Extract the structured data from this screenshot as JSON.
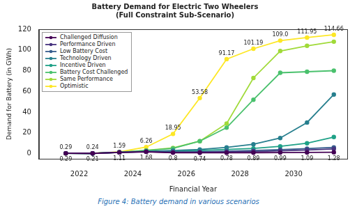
{
  "chart_data": {
    "type": "line",
    "title": "Battery Demand for Electric Two Wheelers",
    "subtitle": "(Full Constraint Sub-Scenario)",
    "caption": "Figure 4: Battery demand in various scenarios",
    "x_label": "Financial Year",
    "y_label": "Demand for Battery (in GWh)",
    "x": [
      2021.5,
      2022.5,
      2023.5,
      2024.5,
      2025.5,
      2026.5,
      2027.5,
      2028.5,
      2029.5,
      2030.5,
      2031.5
    ],
    "xlim": [
      2020.5,
      2032
    ],
    "xticks": [
      2022,
      2024,
      2026,
      2028,
      2030
    ],
    "ylim": [
      -5,
      120
    ],
    "yticks": [
      0,
      20,
      40,
      60,
      80,
      100,
      120
    ],
    "grid": false,
    "legend": "upper left",
    "series": [
      {
        "name": "Challenged Diffusion",
        "color": "#440154",
        "marker": "o",
        "line_style": "solid",
        "data_labels": true,
        "values": [
          0.29,
          0.21,
          1.11,
          1.68,
          0.8,
          0.74,
          0.78,
          0.89,
          0.99,
          1.09,
          1.28
        ],
        "value_labels": [
          "0.29",
          "0.21",
          "1.11",
          "1.68",
          "0.8",
          "0.74",
          "0.78",
          "0.89",
          "0.99",
          "1.09",
          "1.28"
        ]
      },
      {
        "name": "Performance Driven",
        "color": "#46327e",
        "marker": "o",
        "line_style": "solid",
        "values": [
          0.3,
          0.2,
          1.2,
          1.8,
          1.2,
          1.3,
          1.6,
          2,
          2.6,
          3.5,
          4.5
        ]
      },
      {
        "name": "Low Battery Cost",
        "color": "#365c8d",
        "marker": "o",
        "line_style": "solid",
        "values": [
          0.3,
          0.2,
          1.2,
          1.9,
          1.5,
          1.8,
          2.3,
          3,
          3.8,
          4.8,
          6
        ]
      },
      {
        "name": "Technology Driven",
        "color": "#277f8e",
        "marker": "o",
        "line_style": "solid",
        "values": [
          0.3,
          0.2,
          1.3,
          2.2,
          3,
          4,
          6,
          9,
          15,
          30,
          57
        ]
      },
      {
        "name": "Incentive Driven",
        "color": "#1fa187",
        "marker": "o",
        "line_style": "solid",
        "values": [
          0.3,
          0.2,
          1.2,
          2,
          2.2,
          3,
          4,
          5,
          7,
          10,
          16
        ]
      },
      {
        "name": "Battery Cost Challenged",
        "color": "#4ac16d",
        "marker": "o",
        "line_style": "solid",
        "values": [
          0.3,
          0.2,
          1.3,
          3,
          5,
          12,
          25,
          52,
          78,
          79,
          80
        ]
      },
      {
        "name": "Same Performance",
        "color": "#a0da39",
        "marker": "o",
        "line_style": "solid",
        "values": [
          0.3,
          0.2,
          1.4,
          3.2,
          5.5,
          12,
          29,
          73,
          99,
          104,
          108
        ]
      },
      {
        "name": "Optimistic",
        "color": "#fde725",
        "marker": "o",
        "line_style": "solid",
        "data_labels": true,
        "values": [
          0.29,
          0.24,
          1.59,
          6.26,
          18.95,
          53.58,
          91.17,
          101.19,
          109.0,
          111.95,
          114.66
        ],
        "value_labels": [
          "0.29",
          "0.24",
          "1.59",
          "6.26",
          "18.95",
          "53.58",
          "91.17",
          "101.19",
          "109.0",
          "111.95",
          "114.66"
        ]
      }
    ]
  }
}
